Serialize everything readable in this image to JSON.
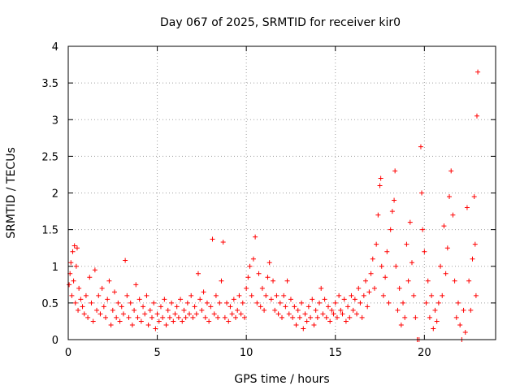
{
  "chart_data": {
    "type": "scatter",
    "title": "Day 067 of 2025, SRMTID for receiver kir0",
    "xlabel": "GPS time / hours",
    "ylabel": "SRMTID / TECUs",
    "xlim": [
      0,
      24
    ],
    "ylim": [
      0,
      4
    ],
    "xticks": [
      0,
      5,
      10,
      15,
      20
    ],
    "xtick_labels": [
      "0",
      "5",
      "10",
      "15",
      "20"
    ],
    "yticks": [
      0,
      0.5,
      1,
      1.5,
      2,
      2.5,
      3,
      3.5,
      4
    ],
    "ytick_labels": [
      "0",
      "0.5",
      "1",
      "1.5",
      "2",
      "2.5",
      "3",
      "3.5",
      "4"
    ],
    "grid": true,
    "marker": "+",
    "color": "#ff0000",
    "series": [
      {
        "name": "SRMTID",
        "points": [
          [
            0.05,
            0.75
          ],
          [
            0.1,
            0.9
          ],
          [
            0.15,
            1.05
          ],
          [
            0.2,
            0.6
          ],
          [
            0.25,
            1.2
          ],
          [
            0.3,
            0.8
          ],
          [
            0.35,
            1.28
          ],
          [
            0.4,
            0.5
          ],
          [
            0.45,
            1.0
          ],
          [
            0.5,
            1.25
          ],
          [
            0.55,
            0.4
          ],
          [
            0.6,
            0.7
          ],
          [
            0.7,
            0.55
          ],
          [
            0.8,
            0.45
          ],
          [
            0.9,
            0.35
          ],
          [
            1.0,
            0.6
          ],
          [
            1.1,
            0.3
          ],
          [
            1.2,
            0.85
          ],
          [
            1.3,
            0.5
          ],
          [
            1.4,
            0.25
          ],
          [
            1.5,
            0.95
          ],
          [
            1.6,
            0.4
          ],
          [
            1.7,
            0.6
          ],
          [
            1.8,
            0.35
          ],
          [
            1.9,
            0.7
          ],
          [
            2.0,
            0.45
          ],
          [
            2.1,
            0.3
          ],
          [
            2.2,
            0.55
          ],
          [
            2.3,
            0.8
          ],
          [
            2.4,
            0.2
          ],
          [
            2.5,
            0.4
          ],
          [
            2.6,
            0.65
          ],
          [
            2.7,
            0.3
          ],
          [
            2.8,
            0.5
          ],
          [
            2.9,
            0.25
          ],
          [
            3.0,
            0.45
          ],
          [
            3.1,
            0.35
          ],
          [
            3.2,
            1.08
          ],
          [
            3.3,
            0.6
          ],
          [
            3.4,
            0.3
          ],
          [
            3.5,
            0.5
          ],
          [
            3.6,
            0.2
          ],
          [
            3.7,
            0.4
          ],
          [
            3.8,
            0.75
          ],
          [
            3.9,
            0.3
          ],
          [
            4.0,
            0.55
          ],
          [
            4.1,
            0.25
          ],
          [
            4.2,
            0.45
          ],
          [
            4.3,
            0.35
          ],
          [
            4.4,
            0.6
          ],
          [
            4.5,
            0.2
          ],
          [
            4.6,
            0.4
          ],
          [
            4.7,
            0.3
          ],
          [
            4.8,
            0.5
          ],
          [
            4.9,
            0.15
          ],
          [
            5.0,
            0.35
          ],
          [
            5.1,
            0.25
          ],
          [
            5.2,
            0.45
          ],
          [
            5.3,
            0.3
          ],
          [
            5.4,
            0.55
          ],
          [
            5.5,
            0.2
          ],
          [
            5.6,
            0.4
          ],
          [
            5.7,
            0.3
          ],
          [
            5.8,
            0.5
          ],
          [
            5.9,
            0.25
          ],
          [
            6.0,
            0.35
          ],
          [
            6.1,
            0.45
          ],
          [
            6.2,
            0.3
          ],
          [
            6.3,
            0.55
          ],
          [
            6.4,
            0.25
          ],
          [
            6.5,
            0.4
          ],
          [
            6.6,
            0.3
          ],
          [
            6.7,
            0.5
          ],
          [
            6.8,
            0.35
          ],
          [
            6.9,
            0.6
          ],
          [
            7.0,
            0.3
          ],
          [
            7.1,
            0.45
          ],
          [
            7.2,
            0.35
          ],
          [
            7.3,
            0.9
          ],
          [
            7.4,
            0.55
          ],
          [
            7.5,
            0.4
          ],
          [
            7.6,
            0.65
          ],
          [
            7.7,
            0.3
          ],
          [
            7.8,
            0.5
          ],
          [
            7.9,
            0.25
          ],
          [
            8.0,
            0.45
          ],
          [
            8.1,
            1.37
          ],
          [
            8.2,
            0.35
          ],
          [
            8.3,
            0.6
          ],
          [
            8.4,
            0.3
          ],
          [
            8.5,
            0.5
          ],
          [
            8.6,
            0.8
          ],
          [
            8.7,
            1.33
          ],
          [
            8.8,
            0.3
          ],
          [
            8.9,
            0.5
          ],
          [
            9.0,
            0.25
          ],
          [
            9.1,
            0.45
          ],
          [
            9.2,
            0.35
          ],
          [
            9.3,
            0.55
          ],
          [
            9.4,
            0.3
          ],
          [
            9.5,
            0.4
          ],
          [
            9.6,
            0.6
          ],
          [
            9.7,
            0.35
          ],
          [
            9.8,
            0.5
          ],
          [
            9.9,
            0.3
          ],
          [
            10.0,
            0.7
          ],
          [
            10.1,
            0.85
          ],
          [
            10.2,
            1.0
          ],
          [
            10.3,
            0.6
          ],
          [
            10.4,
            1.1
          ],
          [
            10.5,
            1.4
          ],
          [
            10.6,
            0.5
          ],
          [
            10.7,
            0.9
          ],
          [
            10.8,
            0.45
          ],
          [
            10.9,
            0.7
          ],
          [
            11.0,
            0.4
          ],
          [
            11.1,
            0.6
          ],
          [
            11.2,
            0.85
          ],
          [
            11.3,
            1.05
          ],
          [
            11.4,
            0.55
          ],
          [
            11.5,
            0.8
          ],
          [
            11.6,
            0.4
          ],
          [
            11.7,
            0.6
          ],
          [
            11.8,
            0.35
          ],
          [
            11.9,
            0.5
          ],
          [
            12.0,
            0.3
          ],
          [
            12.1,
            0.6
          ],
          [
            12.2,
            0.45
          ],
          [
            12.3,
            0.8
          ],
          [
            12.4,
            0.35
          ],
          [
            12.5,
            0.55
          ],
          [
            12.6,
            0.3
          ],
          [
            12.7,
            0.45
          ],
          [
            12.8,
            0.2
          ],
          [
            12.9,
            0.4
          ],
          [
            13.0,
            0.3
          ],
          [
            13.1,
            0.5
          ],
          [
            13.2,
            0.15
          ],
          [
            13.3,
            0.35
          ],
          [
            13.4,
            0.25
          ],
          [
            13.5,
            0.45
          ],
          [
            13.6,
            0.3
          ],
          [
            13.7,
            0.55
          ],
          [
            13.8,
            0.2
          ],
          [
            13.9,
            0.4
          ],
          [
            14.0,
            0.3
          ],
          [
            14.1,
            0.5
          ],
          [
            14.2,
            0.7
          ],
          [
            14.3,
            0.35
          ],
          [
            14.4,
            0.55
          ],
          [
            14.5,
            0.3
          ],
          [
            14.6,
            0.45
          ],
          [
            14.7,
            0.25
          ],
          [
            14.8,
            0.4
          ],
          [
            14.9,
            0.35
          ],
          [
            15.0,
            0.5
          ],
          [
            15.1,
            0.3
          ],
          [
            15.2,
            0.6
          ],
          [
            15.3,
            0.4
          ],
          [
            15.4,
            0.35
          ],
          [
            15.5,
            0.55
          ],
          [
            15.6,
            0.25
          ],
          [
            15.7,
            0.45
          ],
          [
            15.8,
            0.3
          ],
          [
            15.9,
            0.6
          ],
          [
            16.0,
            0.4
          ],
          [
            16.1,
            0.55
          ],
          [
            16.2,
            0.35
          ],
          [
            16.3,
            0.7
          ],
          [
            16.4,
            0.5
          ],
          [
            16.5,
            0.3
          ],
          [
            16.6,
            0.6
          ],
          [
            16.7,
            0.8
          ],
          [
            16.8,
            0.45
          ],
          [
            16.9,
            0.65
          ],
          [
            17.0,
            0.9
          ],
          [
            17.1,
            1.1
          ],
          [
            17.2,
            0.7
          ],
          [
            17.3,
            1.3
          ],
          [
            17.4,
            1.7
          ],
          [
            17.5,
            2.1
          ],
          [
            17.55,
            2.2
          ],
          [
            17.6,
            1.0
          ],
          [
            17.7,
            0.6
          ],
          [
            17.8,
            0.85
          ],
          [
            17.9,
            1.2
          ],
          [
            18.0,
            0.5
          ],
          [
            18.1,
            1.5
          ],
          [
            18.2,
            1.75
          ],
          [
            18.3,
            1.9
          ],
          [
            18.35,
            2.3
          ],
          [
            18.4,
            1.0
          ],
          [
            18.5,
            0.4
          ],
          [
            18.6,
            0.7
          ],
          [
            18.7,
            0.2
          ],
          [
            18.8,
            0.5
          ],
          [
            18.9,
            0.3
          ],
          [
            19.0,
            1.3
          ],
          [
            19.1,
            0.8
          ],
          [
            19.2,
            1.6
          ],
          [
            19.3,
            1.05
          ],
          [
            19.4,
            0.6
          ],
          [
            19.5,
            0.3
          ],
          [
            19.6,
            0.0
          ],
          [
            19.7,
            0.0
          ],
          [
            19.8,
            2.63
          ],
          [
            19.85,
            2.0
          ],
          [
            19.9,
            1.5
          ],
          [
            20.0,
            1.2
          ],
          [
            20.1,
            0.5
          ],
          [
            20.2,
            0.8
          ],
          [
            20.3,
            0.3
          ],
          [
            20.4,
            0.6
          ],
          [
            20.5,
            0.15
          ],
          [
            20.6,
            0.4
          ],
          [
            20.7,
            0.25
          ],
          [
            20.8,
            0.5
          ],
          [
            20.9,
            1.0
          ],
          [
            21.0,
            0.6
          ],
          [
            21.1,
            1.55
          ],
          [
            21.2,
            0.9
          ],
          [
            21.3,
            1.25
          ],
          [
            21.4,
            1.95
          ],
          [
            21.5,
            2.3
          ],
          [
            21.6,
            1.7
          ],
          [
            21.7,
            0.8
          ],
          [
            21.8,
            0.3
          ],
          [
            21.9,
            0.5
          ],
          [
            22.0,
            0.2
          ],
          [
            22.1,
            0.0
          ],
          [
            22.2,
            0.4
          ],
          [
            22.3,
            0.1
          ],
          [
            22.4,
            1.8
          ],
          [
            22.5,
            0.8
          ],
          [
            22.6,
            0.4
          ],
          [
            22.7,
            1.1
          ],
          [
            22.8,
            1.95
          ],
          [
            22.85,
            1.3
          ],
          [
            22.9,
            0.6
          ],
          [
            22.95,
            3.05
          ],
          [
            23.0,
            3.65
          ]
        ]
      }
    ]
  }
}
